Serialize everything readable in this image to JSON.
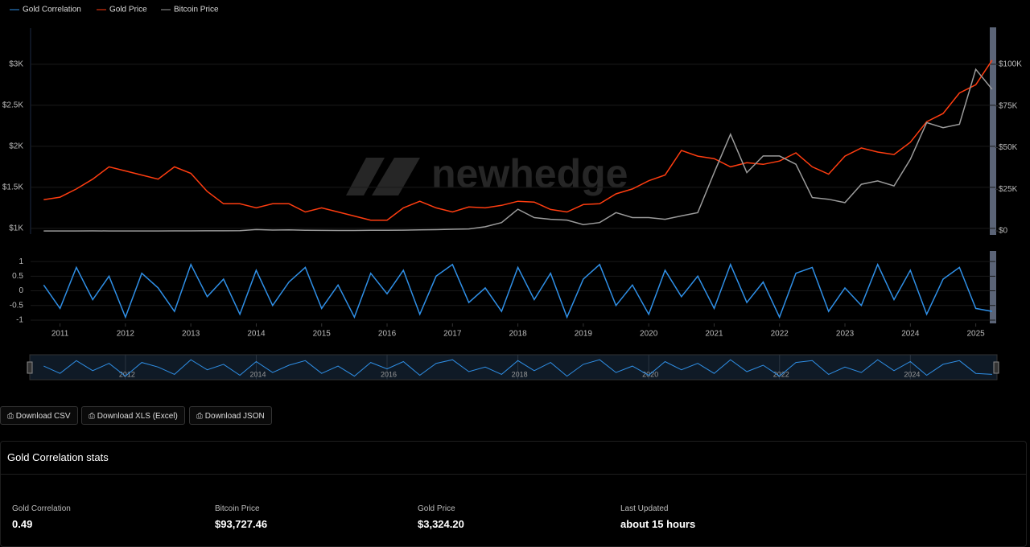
{
  "chart_data": [
    {
      "type": "line",
      "watermark": "newhedge",
      "x": [
        2010.75,
        2011,
        2011.25,
        2011.5,
        2011.75,
        2012,
        2012.25,
        2012.5,
        2012.75,
        2013,
        2013.25,
        2013.5,
        2013.75,
        2014,
        2014.25,
        2014.5,
        2014.75,
        2015,
        2015.25,
        2015.5,
        2015.75,
        2016,
        2016.25,
        2016.5,
        2016.75,
        2017,
        2017.25,
        2017.5,
        2017.75,
        2018,
        2018.25,
        2018.5,
        2018.75,
        2019,
        2019.25,
        2019.5,
        2019.75,
        2020,
        2020.25,
        2020.5,
        2020.75,
        2021,
        2021.25,
        2021.5,
        2021.75,
        2022,
        2022.25,
        2022.5,
        2022.75,
        2023,
        2023.25,
        2023.5,
        2023.75,
        2024,
        2024.25,
        2024.5,
        2024.75,
        2025,
        2025.25
      ],
      "xlim": [
        2010.55,
        2025.3
      ],
      "series": [
        {
          "name": "Gold Price",
          "color": "#ff3d10",
          "axis": "y",
          "values": [
            1350,
            1380,
            1480,
            1600,
            1750,
            1700,
            1650,
            1600,
            1750,
            1670,
            1450,
            1300,
            1300,
            1250,
            1300,
            1300,
            1200,
            1250,
            1200,
            1150,
            1100,
            1100,
            1250,
            1330,
            1250,
            1200,
            1260,
            1250,
            1280,
            1330,
            1320,
            1230,
            1200,
            1290,
            1300,
            1420,
            1480,
            1580,
            1650,
            1950,
            1880,
            1850,
            1750,
            1800,
            1780,
            1820,
            1920,
            1750,
            1660,
            1880,
            1980,
            1930,
            1900,
            2050,
            2300,
            2400,
            2650,
            2750,
            3050
          ]
        },
        {
          "name": "Bitcoin Price",
          "color": "#9b9b9b",
          "axis": "y2",
          "values": [
            0,
            0,
            0,
            10,
            5,
            5,
            7,
            7,
            12,
            20,
            100,
            100,
            200,
            800,
            500,
            600,
            400,
            300,
            250,
            280,
            400,
            430,
            450,
            650,
            750,
            1000,
            1200,
            2500,
            5000,
            13000,
            8000,
            7000,
            6500,
            3800,
            5000,
            11000,
            8000,
            8000,
            7000,
            9000,
            11000,
            35000,
            58000,
            35000,
            45000,
            45000,
            40000,
            20000,
            19000,
            17000,
            28000,
            30000,
            27000,
            43000,
            65000,
            62000,
            64000,
            97000,
            85000
          ]
        }
      ],
      "ylim": [
        930,
        3440
      ],
      "yticks": [
        {
          "value": 1000,
          "label": "$1K"
        },
        {
          "value": 1500,
          "label": "$1.5K"
        },
        {
          "value": 2000,
          "label": "$2K"
        },
        {
          "value": 2500,
          "label": "$2.5K"
        },
        {
          "value": 3000,
          "label": "$3K"
        }
      ],
      "y2lim": [
        -1900,
        121700
      ],
      "y2ticks": [
        {
          "value": 0,
          "label": "$0"
        },
        {
          "value": 25000,
          "label": "$25K"
        },
        {
          "value": 50000,
          "label": "$50K"
        },
        {
          "value": 75000,
          "label": "$75K"
        },
        {
          "value": 100000,
          "label": "$100K"
        }
      ]
    },
    {
      "type": "line",
      "x": [
        2010.75,
        2011,
        2011.25,
        2011.5,
        2011.75,
        2012,
        2012.25,
        2012.5,
        2012.75,
        2013,
        2013.25,
        2013.5,
        2013.75,
        2014,
        2014.25,
        2014.5,
        2014.75,
        2015,
        2015.25,
        2015.5,
        2015.75,
        2016,
        2016.25,
        2016.5,
        2016.75,
        2017,
        2017.25,
        2017.5,
        2017.75,
        2018,
        2018.25,
        2018.5,
        2018.75,
        2019,
        2019.25,
        2019.5,
        2019.75,
        2020,
        2020.25,
        2020.5,
        2020.75,
        2021,
        2021.25,
        2021.5,
        2021.75,
        2022,
        2022.25,
        2022.5,
        2022.75,
        2023,
        2023.25,
        2023.5,
        2023.75,
        2024,
        2024.25,
        2024.5,
        2024.75,
        2025,
        2025.25
      ],
      "xlim": [
        2010.55,
        2025.3
      ],
      "series": [
        {
          "name": "Gold Correlation",
          "color": "#2f8fe6",
          "values": [
            0.2,
            -0.6,
            0.8,
            -0.3,
            0.5,
            -0.9,
            0.6,
            0.1,
            -0.7,
            0.9,
            -0.2,
            0.4,
            -0.8,
            0.7,
            -0.5,
            0.3,
            0.8,
            -0.6,
            0.2,
            -0.9,
            0.6,
            -0.1,
            0.7,
            -0.8,
            0.5,
            0.9,
            -0.4,
            0.1,
            -0.7,
            0.8,
            -0.3,
            0.6,
            -0.9,
            0.4,
            0.9,
            -0.5,
            0.2,
            -0.8,
            0.7,
            -0.2,
            0.5,
            -0.6,
            0.9,
            -0.4,
            0.3,
            -0.9,
            0.6,
            0.8,
            -0.7,
            0.1,
            -0.5,
            0.9,
            -0.3,
            0.7,
            -0.8,
            0.4,
            0.8,
            -0.6,
            -0.7
          ]
        }
      ],
      "ylim": [
        -1.11,
        1.36
      ],
      "yticks": [
        -1,
        -0.5,
        0,
        0.5,
        1
      ],
      "xticks": [
        2011,
        2012,
        2013,
        2014,
        2015,
        2016,
        2017,
        2018,
        2019,
        2020,
        2021,
        2022,
        2023,
        2024,
        2025
      ],
      "navigator_xticks": [
        2012,
        2014,
        2016,
        2018,
        2020,
        2022,
        2024
      ]
    }
  ],
  "buttons": [
    "Download CSV",
    "Download XLS (Excel)",
    "Download JSON"
  ],
  "stats": {
    "title": "Gold Correlation stats",
    "items": [
      {
        "label": "Gold Correlation",
        "value": "0.49"
      },
      {
        "label": "Bitcoin Price",
        "value": "$93,727.46"
      },
      {
        "label": "Gold Price",
        "value": "$3,324.20"
      },
      {
        "label": "Last Updated",
        "value": "about 15 hours"
      }
    ]
  }
}
